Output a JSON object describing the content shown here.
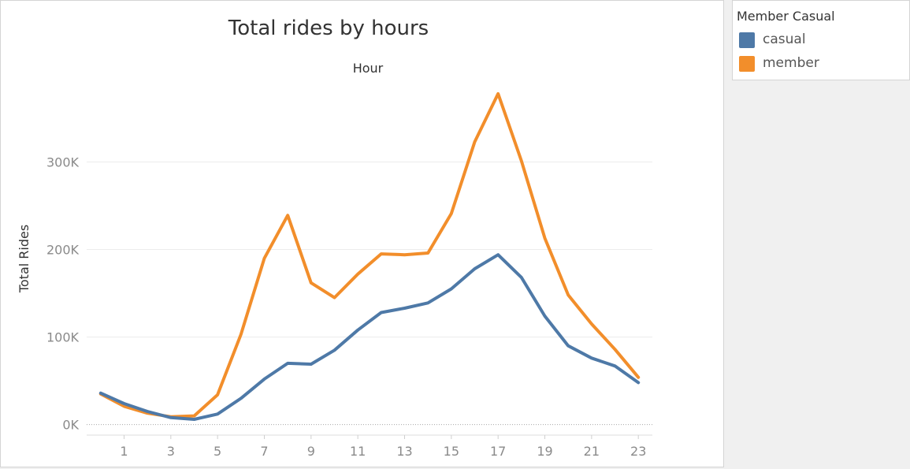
{
  "page": {
    "title": "Total rides by hours"
  },
  "legend": {
    "title": "Member Casual",
    "items": [
      {
        "label": "casual",
        "color": "#4e79a7"
      },
      {
        "label": "member",
        "color": "#f28e2b"
      }
    ]
  },
  "chart_data": {
    "type": "line",
    "title": "Total rides by hours",
    "xlabel": "Hour",
    "ylabel": "Total Rides",
    "x": [
      0,
      1,
      2,
      3,
      4,
      5,
      6,
      7,
      8,
      9,
      10,
      11,
      12,
      13,
      14,
      15,
      16,
      17,
      18,
      19,
      20,
      21,
      22,
      23
    ],
    "xlim": [
      -0.6,
      23.6
    ],
    "ylim": [
      -12000,
      395000
    ],
    "x_ticks": [
      1,
      3,
      5,
      7,
      9,
      11,
      13,
      15,
      17,
      19,
      21,
      23
    ],
    "x_tick_labels": [
      "1",
      "3",
      "5",
      "7",
      "9",
      "11",
      "13",
      "15",
      "17",
      "19",
      "21",
      "23"
    ],
    "y_ticks": [
      0,
      100000,
      200000,
      300000
    ],
    "y_tick_labels": [
      "0K",
      "100K",
      "200K",
      "300K"
    ],
    "grid": true,
    "legend_position": "right",
    "series": [
      {
        "name": "casual",
        "color": "#4e79a7",
        "values": [
          36000,
          24000,
          15000,
          8000,
          6000,
          12000,
          30000,
          52000,
          70000,
          69000,
          85000,
          108000,
          128000,
          133000,
          139000,
          155000,
          178000,
          194000,
          168000,
          124000,
          90000,
          76000,
          67000,
          48000
        ]
      },
      {
        "name": "member",
        "color": "#f28e2b",
        "values": [
          35000,
          21000,
          13000,
          9000,
          10000,
          34000,
          103000,
          190000,
          239000,
          162000,
          145000,
          172000,
          195000,
          194000,
          196000,
          241000,
          323000,
          378000,
          301000,
          213000,
          148000,
          115000,
          86000,
          54000
        ]
      }
    ]
  }
}
